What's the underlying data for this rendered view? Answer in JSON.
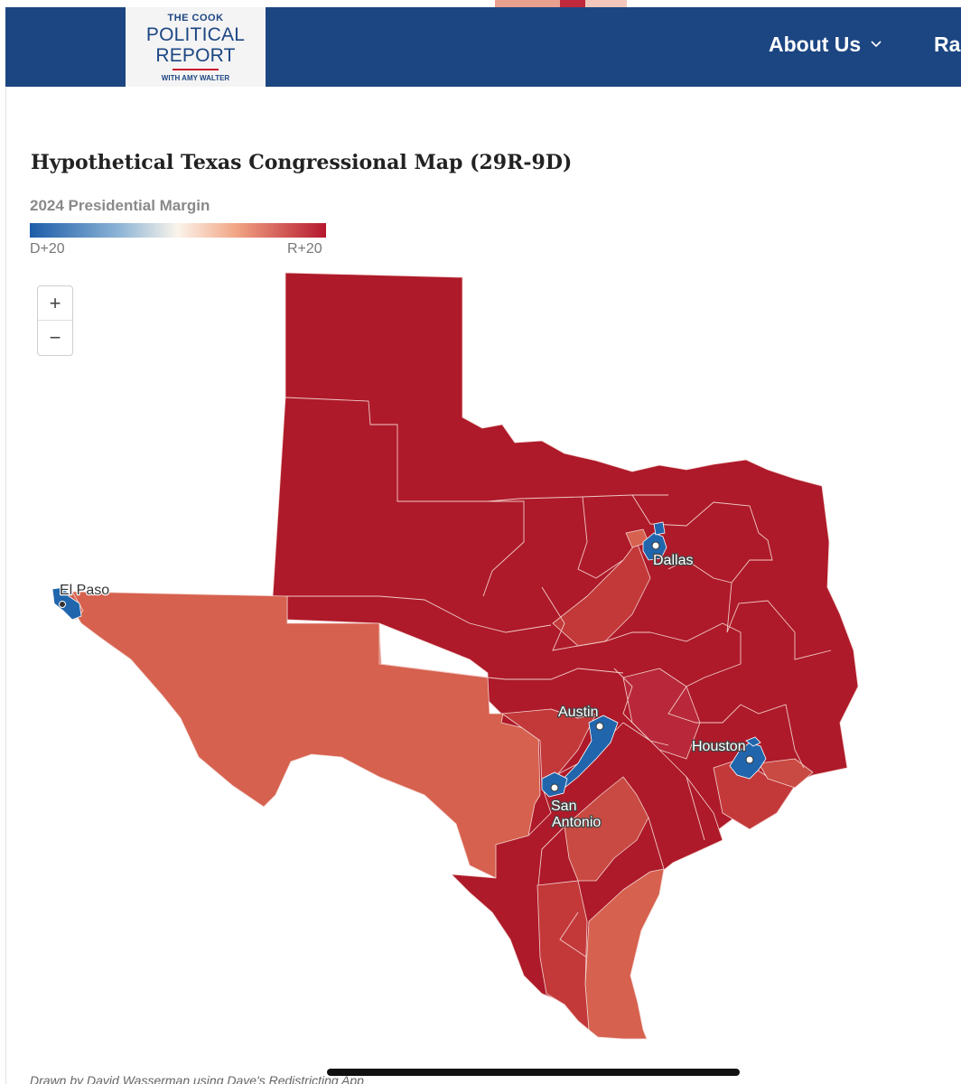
{
  "header": {
    "logo": {
      "line1": "THE COOK",
      "line2": "POLITICAL",
      "line3": "REPORT",
      "line4": "WITH AMY WALTER"
    },
    "nav_about": "About Us",
    "nav_next": "Ra",
    "bg_color": "#1c4682"
  },
  "map": {
    "title": "Hypothetical Texas Congressional Map (29R-9D)",
    "legend_title": "2024 Presidential Margin",
    "legend_min": "D+20",
    "legend_max": "R+20",
    "zoom_in": "+",
    "zoom_out": "−",
    "colors": {
      "strong_r": "#ae1a2a",
      "mid_r": "#c3393a",
      "lean_r": "#d6614e",
      "dem": "#2166ac"
    },
    "cities": {
      "el_paso": "El Paso",
      "dallas": "Dallas",
      "austin": "Austin",
      "houston": "Houston",
      "san_antonio_1": "San",
      "san_antonio_2": "Antonio"
    }
  },
  "credit": "Drawn by David Wasserman using Dave's Redistricting App"
}
